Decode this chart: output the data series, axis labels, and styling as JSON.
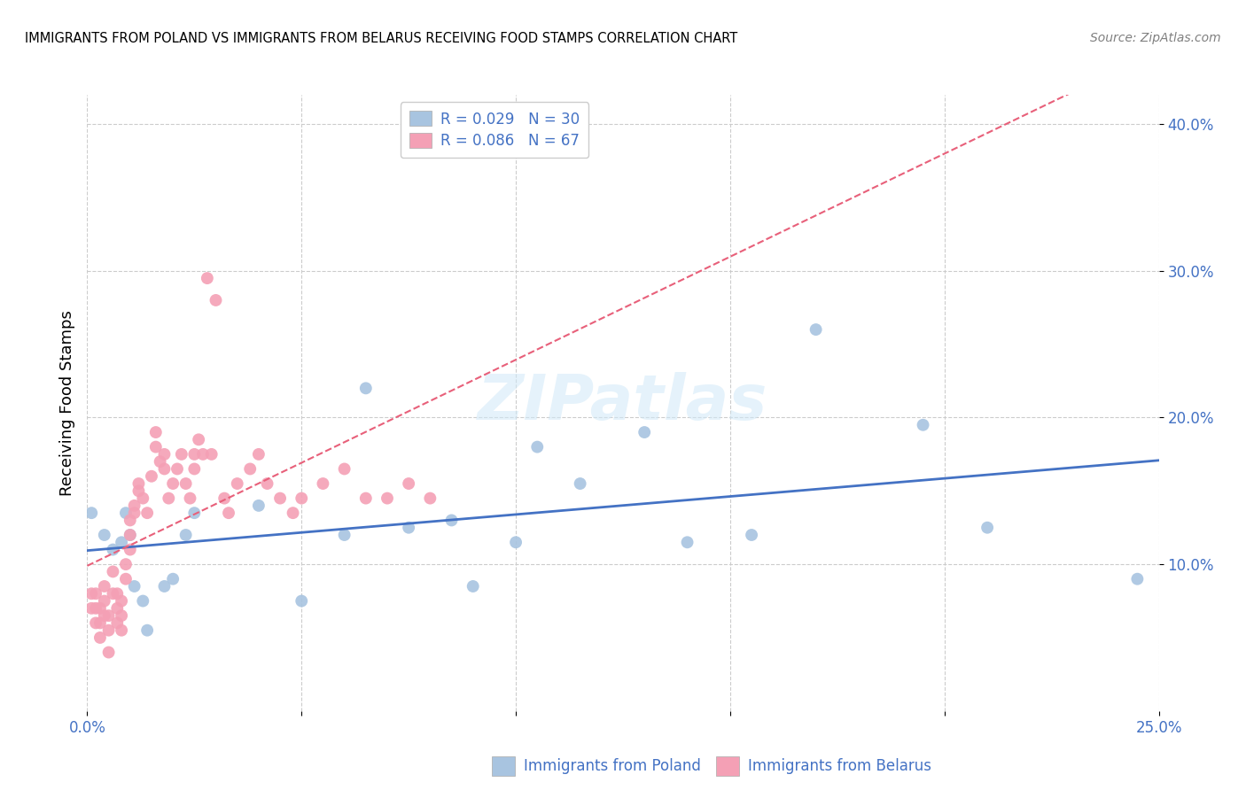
{
  "title": "IMMIGRANTS FROM POLAND VS IMMIGRANTS FROM BELARUS RECEIVING FOOD STAMPS CORRELATION CHART",
  "source": "Source: ZipAtlas.com",
  "ylabel": "Receiving Food Stamps",
  "xlabel_poland": "Immigrants from Poland",
  "xlabel_belarus": "Immigrants from Belarus",
  "xlim": [
    0.0,
    0.25
  ],
  "ylim": [
    0.0,
    0.42
  ],
  "xticks": [
    0.0,
    0.05,
    0.1,
    0.15,
    0.2,
    0.25
  ],
  "yticks": [
    0.1,
    0.2,
    0.3,
    0.4
  ],
  "ytick_labels": [
    "10.0%",
    "20.0%",
    "30.0%",
    "40.0%"
  ],
  "xtick_labels": [
    "0.0%",
    "",
    "",
    "",
    "",
    "25.0%"
  ],
  "poland_color": "#a8c4e0",
  "belarus_color": "#f4a0b5",
  "poland_line_color": "#4472c4",
  "belarus_line_color": "#e8607a",
  "poland_x": [
    0.001,
    0.004,
    0.006,
    0.008,
    0.009,
    0.01,
    0.011,
    0.013,
    0.014,
    0.018,
    0.02,
    0.023,
    0.025,
    0.04,
    0.05,
    0.06,
    0.065,
    0.075,
    0.085,
    0.09,
    0.1,
    0.105,
    0.115,
    0.13,
    0.14,
    0.155,
    0.17,
    0.195,
    0.21,
    0.245
  ],
  "poland_y": [
    0.135,
    0.12,
    0.11,
    0.115,
    0.135,
    0.12,
    0.085,
    0.075,
    0.055,
    0.085,
    0.09,
    0.12,
    0.135,
    0.14,
    0.075,
    0.12,
    0.22,
    0.125,
    0.13,
    0.085,
    0.115,
    0.18,
    0.155,
    0.19,
    0.115,
    0.12,
    0.26,
    0.195,
    0.125,
    0.09
  ],
  "belarus_x": [
    0.001,
    0.001,
    0.002,
    0.002,
    0.002,
    0.003,
    0.003,
    0.003,
    0.004,
    0.004,
    0.004,
    0.005,
    0.005,
    0.005,
    0.006,
    0.006,
    0.007,
    0.007,
    0.007,
    0.008,
    0.008,
    0.008,
    0.009,
    0.009,
    0.01,
    0.01,
    0.01,
    0.011,
    0.011,
    0.012,
    0.012,
    0.013,
    0.014,
    0.015,
    0.016,
    0.016,
    0.017,
    0.018,
    0.018,
    0.019,
    0.02,
    0.021,
    0.022,
    0.023,
    0.024,
    0.025,
    0.025,
    0.026,
    0.027,
    0.028,
    0.029,
    0.03,
    0.032,
    0.033,
    0.035,
    0.038,
    0.04,
    0.042,
    0.045,
    0.048,
    0.05,
    0.055,
    0.06,
    0.065,
    0.07,
    0.075,
    0.08
  ],
  "belarus_y": [
    0.07,
    0.08,
    0.06,
    0.07,
    0.08,
    0.05,
    0.06,
    0.07,
    0.065,
    0.075,
    0.085,
    0.04,
    0.055,
    0.065,
    0.08,
    0.095,
    0.06,
    0.07,
    0.08,
    0.055,
    0.065,
    0.075,
    0.09,
    0.1,
    0.11,
    0.12,
    0.13,
    0.135,
    0.14,
    0.15,
    0.155,
    0.145,
    0.135,
    0.16,
    0.18,
    0.19,
    0.17,
    0.165,
    0.175,
    0.145,
    0.155,
    0.165,
    0.175,
    0.155,
    0.145,
    0.165,
    0.175,
    0.185,
    0.175,
    0.295,
    0.175,
    0.28,
    0.145,
    0.135,
    0.155,
    0.165,
    0.175,
    0.155,
    0.145,
    0.135,
    0.145,
    0.155,
    0.165,
    0.145,
    0.145,
    0.155,
    0.145
  ]
}
